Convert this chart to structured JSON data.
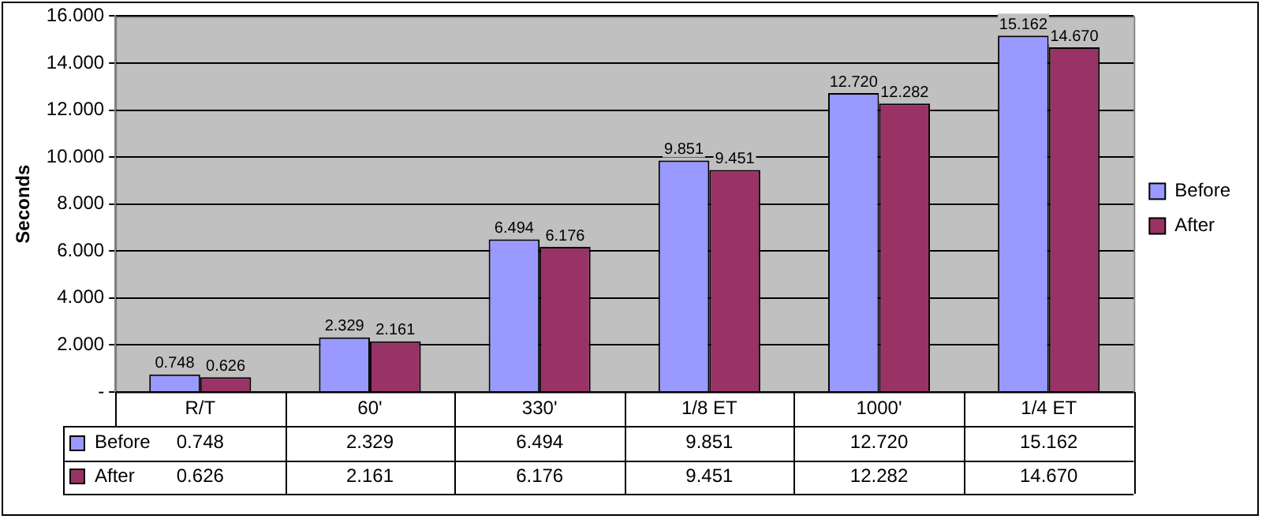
{
  "chart_data": {
    "type": "bar",
    "ylabel": "Seconds",
    "categories": [
      "R/T",
      "60'",
      "330'",
      "1/8 ET",
      "1000'",
      "1/4 ET"
    ],
    "series": [
      {
        "name": "Before",
        "color": "#9999ff",
        "values": [
          0.748,
          2.329,
          6.494,
          9.851,
          12.72,
          15.162
        ],
        "value_labels": [
          "0.748",
          "2.329",
          "6.494",
          "9.851",
          "12.720",
          "15.162"
        ]
      },
      {
        "name": "After",
        "color": "#993366",
        "values": [
          0.626,
          2.161,
          6.176,
          9.451,
          12.282,
          14.67
        ],
        "value_labels": [
          "0.626",
          "2.161",
          "6.176",
          "9.451",
          "12.282",
          "14.670"
        ]
      }
    ],
    "ylim": [
      0,
      16
    ],
    "yticks": [
      {
        "value": 0,
        "label": "-"
      },
      {
        "value": 2,
        "label": "2.000"
      },
      {
        "value": 4,
        "label": "4.000"
      },
      {
        "value": 6,
        "label": "6.000"
      },
      {
        "value": 8,
        "label": "8.000"
      },
      {
        "value": 10,
        "label": "10.000"
      },
      {
        "value": 12,
        "label": "12.000"
      },
      {
        "value": 14,
        "label": "14.000"
      },
      {
        "value": 16,
        "label": "16.000"
      }
    ],
    "grid": "y",
    "legend": "right"
  }
}
